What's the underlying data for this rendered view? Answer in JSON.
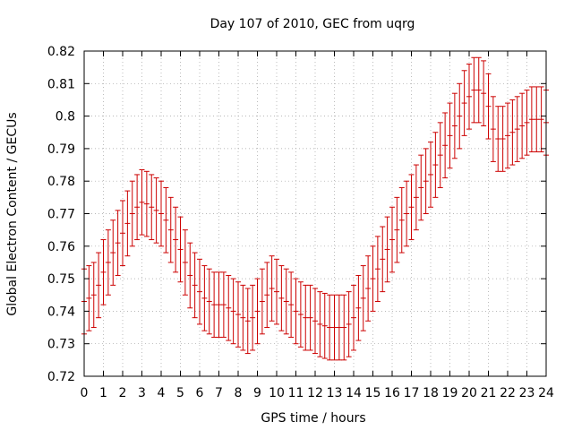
{
  "chart_data": {
    "type": "scatter",
    "title": "Day 107 of 2010, GEC from uqrg",
    "xlabel": "GPS time / hours",
    "ylabel": "Global Electron Content / GECUs",
    "xlim": [
      0,
      24
    ],
    "ylim": [
      0.72,
      0.82
    ],
    "xticks": [
      "0",
      "1",
      "2",
      "3",
      "4",
      "5",
      "6",
      "7",
      "8",
      "9",
      "10",
      "11",
      "12",
      "13",
      "14",
      "15",
      "16",
      "17",
      "18",
      "19",
      "20",
      "21",
      "22",
      "23",
      "24"
    ],
    "yticks": [
      "0.72",
      "0.73",
      "0.74",
      "0.75",
      "0.76",
      "0.77",
      "0.78",
      "0.79",
      "0.8",
      "0.81",
      "0.82"
    ],
    "grid": true,
    "error_color": "#cc0000",
    "series": [
      {
        "x": [
          0,
          0.25,
          0.5,
          0.75,
          1,
          1.25,
          1.5,
          1.75,
          2,
          2.25,
          2.5,
          2.75,
          3,
          3.25,
          3.5,
          3.75,
          4,
          4.25,
          4.5,
          4.75,
          5,
          5.25,
          5.5,
          5.75,
          6,
          6.25,
          6.5,
          6.75,
          7,
          7.25,
          7.5,
          7.75,
          8,
          8.25,
          8.5,
          8.75,
          9,
          9.25,
          9.5,
          9.75,
          10,
          10.25,
          10.5,
          10.75,
          11,
          11.25,
          11.5,
          11.75,
          12,
          12.25,
          12.5,
          12.75,
          13,
          13.25,
          13.5,
          13.75,
          14,
          14.25,
          14.5,
          14.75,
          15,
          15.25,
          15.5,
          15.75,
          16,
          16.25,
          16.5,
          16.75,
          17,
          17.25,
          17.5,
          17.75,
          18,
          18.25,
          18.5,
          18.75,
          19,
          19.25,
          19.5,
          19.75,
          20,
          20.25,
          20.5,
          20.75,
          21,
          21.25,
          21.5,
          21.75,
          22,
          22.25,
          22.5,
          22.75,
          23,
          23.25,
          23.5,
          23.75,
          24
        ],
        "y": [
          0.743,
          0.744,
          0.745,
          0.748,
          0.752,
          0.755,
          0.758,
          0.761,
          0.764,
          0.767,
          0.77,
          0.772,
          0.7735,
          0.773,
          0.772,
          0.771,
          0.77,
          0.768,
          0.765,
          0.762,
          0.759,
          0.755,
          0.751,
          0.748,
          0.746,
          0.744,
          0.743,
          0.742,
          0.742,
          0.742,
          0.741,
          0.74,
          0.739,
          0.738,
          0.737,
          0.738,
          0.74,
          0.743,
          0.745,
          0.747,
          0.746,
          0.744,
          0.743,
          0.742,
          0.74,
          0.739,
          0.738,
          0.738,
          0.737,
          0.736,
          0.7355,
          0.735,
          0.735,
          0.735,
          0.735,
          0.736,
          0.738,
          0.741,
          0.744,
          0.747,
          0.75,
          0.753,
          0.756,
          0.759,
          0.762,
          0.765,
          0.768,
          0.77,
          0.772,
          0.775,
          0.778,
          0.78,
          0.782,
          0.785,
          0.788,
          0.791,
          0.794,
          0.797,
          0.8,
          0.804,
          0.806,
          0.808,
          0.808,
          0.807,
          0.803,
          0.796,
          0.793,
          0.793,
          0.794,
          0.795,
          0.796,
          0.797,
          0.798,
          0.799,
          0.799,
          0.799,
          0.798
        ],
        "yerr": [
          0.01,
          0.01,
          0.01,
          0.01,
          0.01,
          0.01,
          0.01,
          0.01,
          0.01,
          0.01,
          0.01,
          0.01,
          0.01,
          0.01,
          0.01,
          0.01,
          0.01,
          0.01,
          0.01,
          0.01,
          0.01,
          0.01,
          0.01,
          0.01,
          0.01,
          0.01,
          0.01,
          0.01,
          0.01,
          0.01,
          0.01,
          0.01,
          0.01,
          0.01,
          0.01,
          0.01,
          0.01,
          0.01,
          0.01,
          0.01,
          0.01,
          0.01,
          0.01,
          0.01,
          0.01,
          0.01,
          0.01,
          0.01,
          0.01,
          0.01,
          0.01,
          0.01,
          0.01,
          0.01,
          0.01,
          0.01,
          0.01,
          0.01,
          0.01,
          0.01,
          0.01,
          0.01,
          0.01,
          0.01,
          0.01,
          0.01,
          0.01,
          0.01,
          0.01,
          0.01,
          0.01,
          0.01,
          0.01,
          0.01,
          0.01,
          0.01,
          0.01,
          0.01,
          0.01,
          0.01,
          0.01,
          0.01,
          0.01,
          0.01,
          0.01,
          0.01,
          0.01,
          0.01,
          0.01,
          0.01,
          0.01,
          0.01,
          0.01,
          0.01,
          0.01,
          0.01,
          0.01
        ]
      }
    ]
  }
}
